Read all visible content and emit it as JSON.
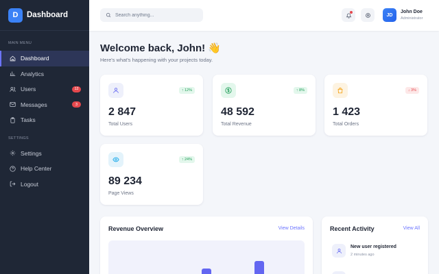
{
  "brand": {
    "logo_letter": "D",
    "name": "Dashboard"
  },
  "sidebar": {
    "main_menu_label": "MAIN MENU",
    "settings_label": "SETTINGS",
    "main_items": [
      {
        "label": "Dashboard",
        "icon": "home-icon",
        "active": true
      },
      {
        "label": "Analytics",
        "icon": "bar-chart-icon"
      },
      {
        "label": "Users",
        "icon": "users-icon",
        "badge": "12"
      },
      {
        "label": "Messages",
        "icon": "mail-icon",
        "badge": "3"
      },
      {
        "label": "Tasks",
        "icon": "clipboard-icon"
      }
    ],
    "settings_items": [
      {
        "label": "Settings",
        "icon": "gear-icon"
      },
      {
        "label": "Help Center",
        "icon": "help-icon"
      },
      {
        "label": "Logout",
        "icon": "logout-icon"
      }
    ]
  },
  "topbar": {
    "search_placeholder": "Search anything...",
    "user": {
      "initials": "JD",
      "name": "John Doe",
      "role": "Administrator"
    }
  },
  "main": {
    "welcome": "Welcome back, John! 👋",
    "subtitle": "Here's what's happening with your projects today.",
    "stats": [
      {
        "value": "2 847",
        "label": "Total Users",
        "trend": "↑ 12%",
        "direction": "up",
        "icon": "users-icon",
        "icon_bg": "#eef0fb",
        "icon_color": "#6366f1"
      },
      {
        "value": "48 592",
        "label": "Total Revenue",
        "trend": "↑ 8%",
        "direction": "up",
        "icon": "dollar-icon",
        "icon_bg": "#e3f7ec",
        "icon_color": "#1f9d57"
      },
      {
        "value": "1 423",
        "label": "Total Orders",
        "trend": "↓ 3%",
        "direction": "down",
        "icon": "shopping-bag-icon",
        "icon_bg": "#fdf3e1",
        "icon_color": "#f59e0b"
      },
      {
        "value": "89 234",
        "label": "Page Views",
        "trend": "↑ 24%",
        "direction": "up",
        "icon": "eye-icon",
        "icon_bg": "#e3f3fb",
        "icon_color": "#0ea5e9"
      }
    ],
    "revenue": {
      "title": "Revenue Overview",
      "link": "View Details"
    },
    "activity": {
      "title": "Recent Activity",
      "link": "View All",
      "items": [
        {
          "title": "New user registered",
          "time": "2 minutes ago",
          "icon": "user-icon"
        }
      ]
    }
  },
  "colors": {
    "accent": "#6366f1",
    "sidebar_bg": "#1f2736",
    "danger": "#e5484d"
  }
}
